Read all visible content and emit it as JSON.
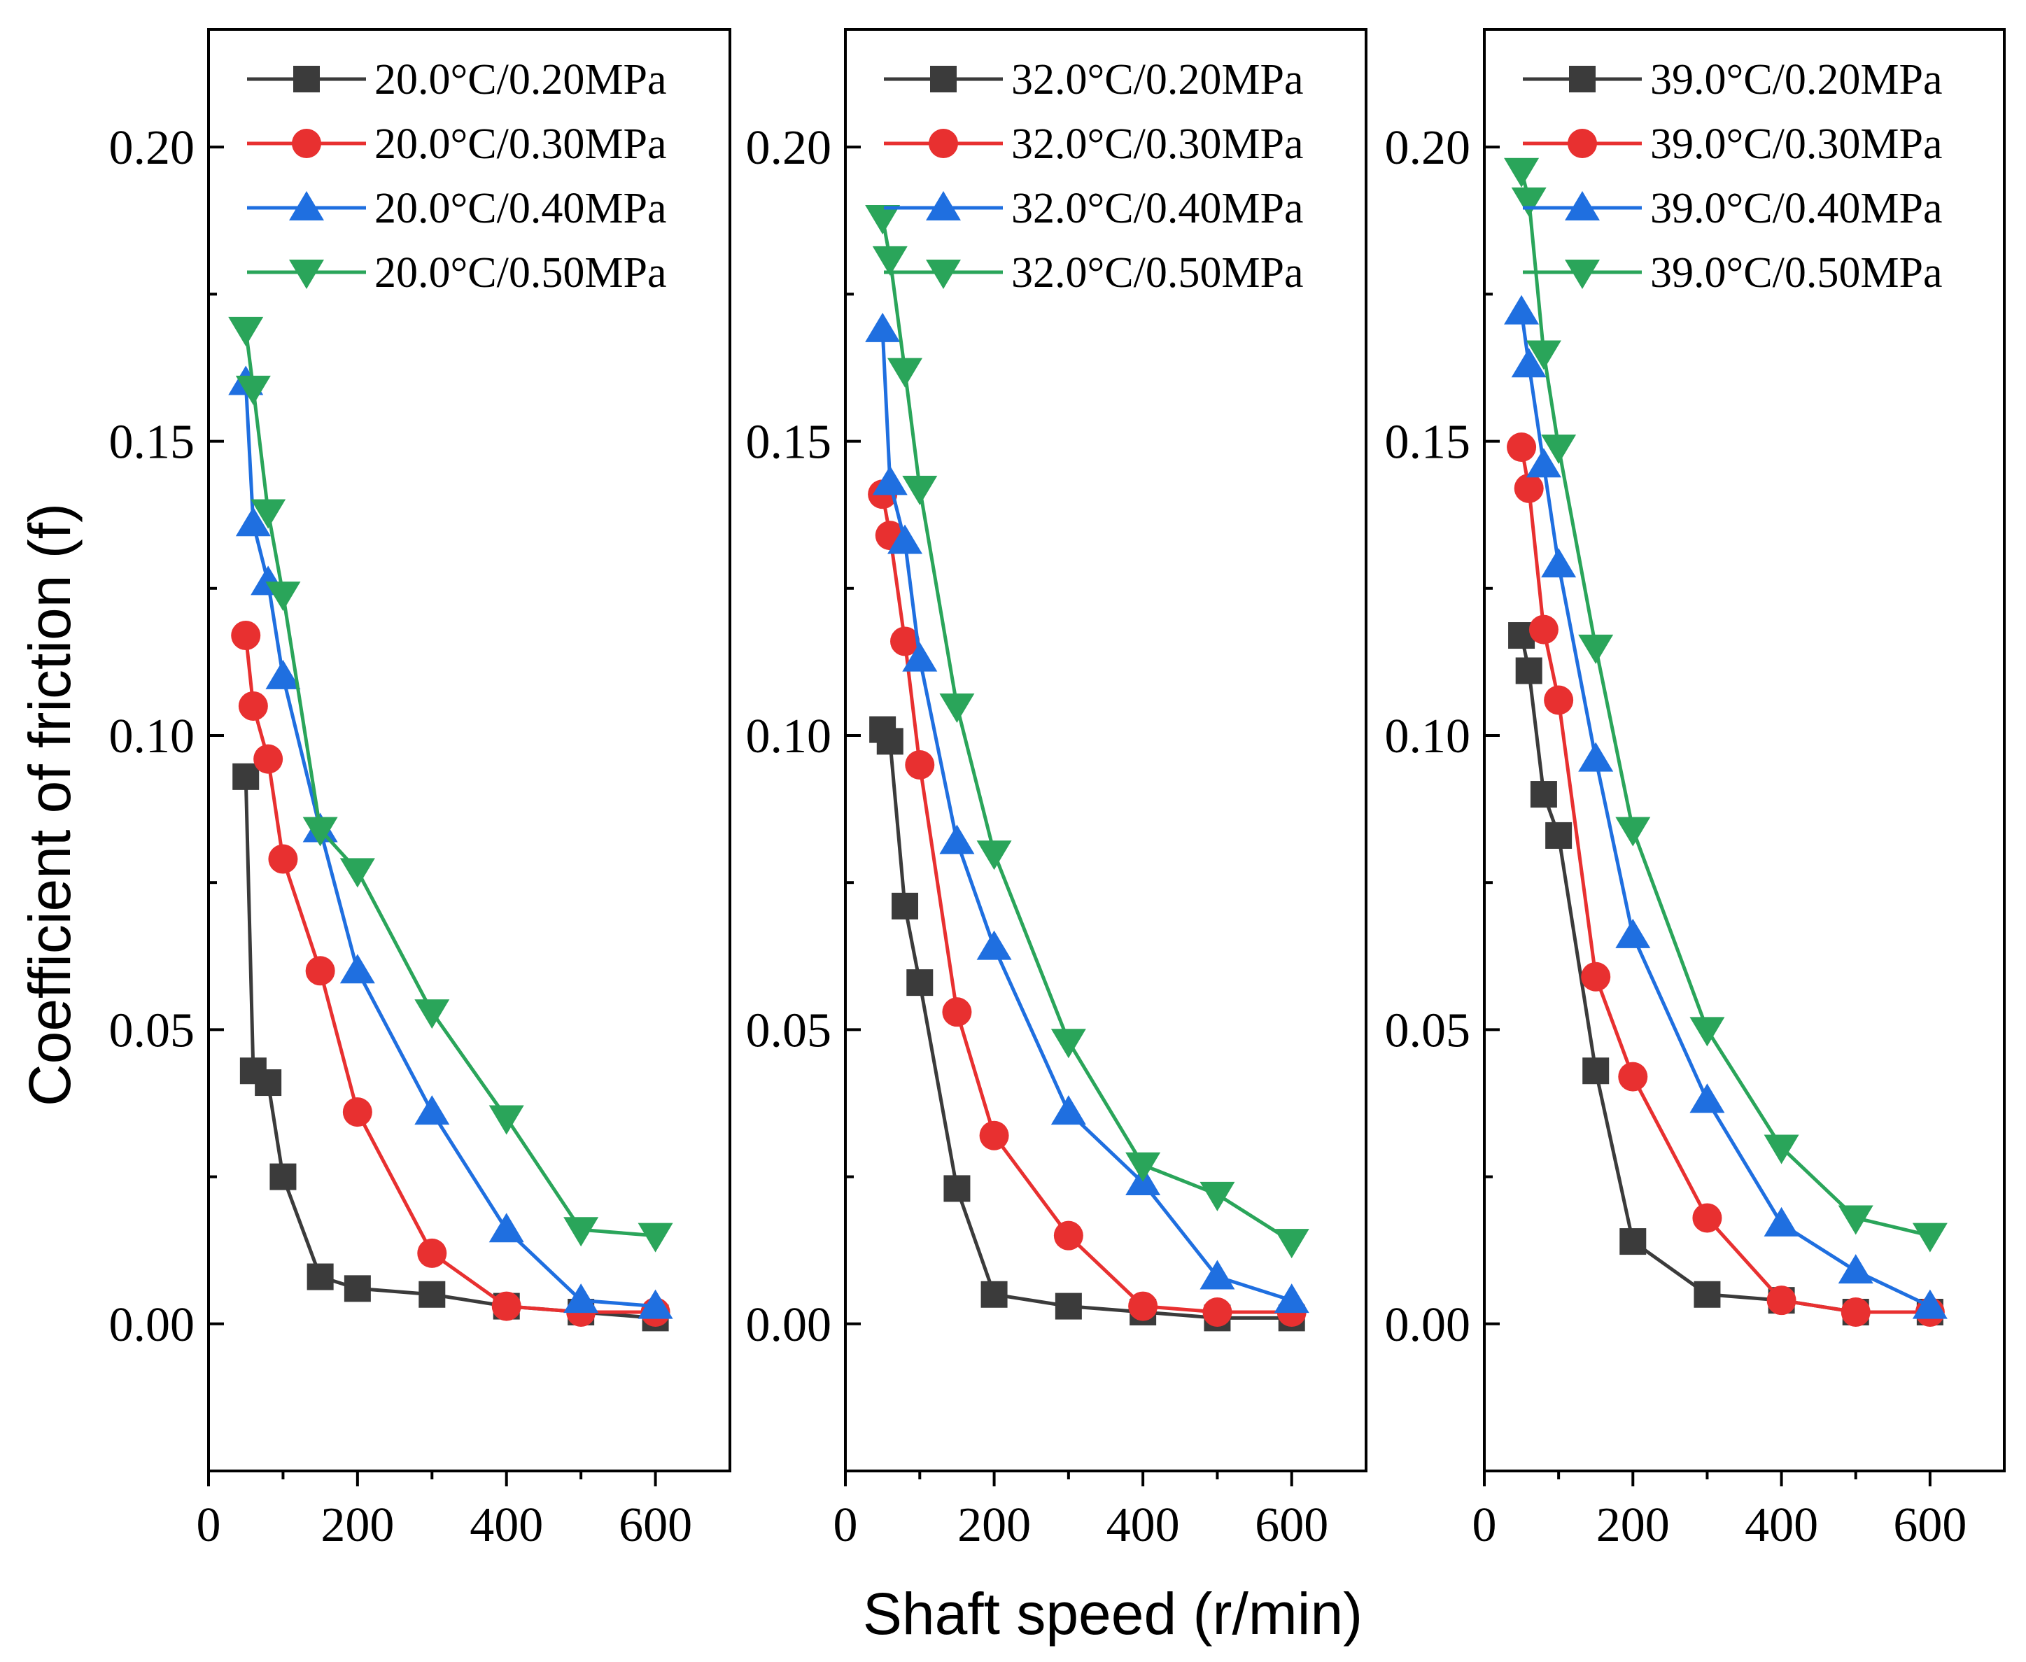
{
  "chart_data": {
    "type": "line",
    "xlabel": "Shaft speed (r/min)",
    "ylabel": "Coefficient of friction (f)",
    "xlim": [
      0,
      700
    ],
    "ylim": [
      -0.025,
      0.22
    ],
    "x_ticks": [
      0,
      200,
      400,
      600
    ],
    "x_tick_labels": [
      "0",
      "200",
      "400",
      "600"
    ],
    "y_ticks": [
      0.0,
      0.05,
      0.1,
      0.15,
      0.2
    ],
    "y_tick_labels": [
      "0.00",
      "0.05",
      "0.10",
      "0.15",
      "0.20"
    ],
    "x": [
      50,
      60,
      80,
      100,
      150,
      200,
      300,
      400,
      500,
      600
    ],
    "legend_position": "top-right",
    "series_colors": [
      "#3b3b3b",
      "#e83030",
      "#1f6fe0",
      "#2aa55a"
    ],
    "series_markers": [
      "square",
      "circle",
      "triangle-up",
      "triangle-down"
    ],
    "panels": [
      {
        "series": [
          {
            "name": "20.0°C/0.20MPa",
            "values": [
              0.093,
              0.043,
              0.041,
              0.025,
              0.008,
              0.006,
              0.005,
              0.003,
              0.002,
              0.001
            ]
          },
          {
            "name": "20.0°C/0.30MPa",
            "values": [
              0.117,
              0.105,
              0.096,
              0.079,
              0.06,
              0.036,
              0.012,
              0.003,
              0.002,
              0.002
            ]
          },
          {
            "name": "20.0°C/0.40MPa",
            "values": [
              0.16,
              0.136,
              0.126,
              0.11,
              0.084,
              0.06,
              0.036,
              0.016,
              0.004,
              0.003
            ]
          },
          {
            "name": "20.0°C/0.50MPa",
            "values": [
              0.169,
              0.159,
              0.138,
              0.124,
              0.084,
              0.077,
              0.053,
              0.035,
              0.016,
              0.015
            ]
          }
        ]
      },
      {
        "series": [
          {
            "name": "32.0°C/0.20MPa",
            "values": [
              0.101,
              0.099,
              0.071,
              0.058,
              0.023,
              0.005,
              0.003,
              0.002,
              0.001,
              0.001
            ]
          },
          {
            "name": "32.0°C/0.30MPa",
            "values": [
              0.141,
              0.134,
              0.116,
              0.095,
              0.053,
              0.032,
              0.015,
              0.003,
              0.002,
              0.002
            ]
          },
          {
            "name": "32.0°C/0.40MPa",
            "values": [
              0.169,
              0.143,
              0.133,
              0.113,
              0.082,
              0.064,
              0.036,
              0.024,
              0.008,
              0.004
            ]
          },
          {
            "name": "32.0°C/0.50MPa",
            "values": [
              0.188,
              0.181,
              0.162,
              0.142,
              0.105,
              0.08,
              0.048,
              0.027,
              0.022,
              0.014
            ]
          }
        ]
      },
      {
        "series": [
          {
            "name": "39.0°C/0.20MPa",
            "values": [
              0.117,
              0.111,
              0.09,
              0.083,
              0.043,
              0.014,
              0.005,
              0.004,
              0.002,
              0.002
            ]
          },
          {
            "name": "39.0°C/0.30MPa",
            "values": [
              0.149,
              0.142,
              0.118,
              0.106,
              0.059,
              0.042,
              0.018,
              0.004,
              0.002,
              0.002
            ]
          },
          {
            "name": "39.0°C/0.40MPa",
            "values": [
              0.172,
              0.163,
              0.146,
              0.129,
              0.096,
              0.066,
              0.038,
              0.017,
              0.009,
              0.003
            ]
          },
          {
            "name": "39.0°C/0.50MPa",
            "values": [
              0.196,
              0.191,
              0.165,
              0.149,
              0.115,
              0.084,
              0.05,
              0.03,
              0.018,
              0.015
            ]
          }
        ]
      }
    ]
  }
}
